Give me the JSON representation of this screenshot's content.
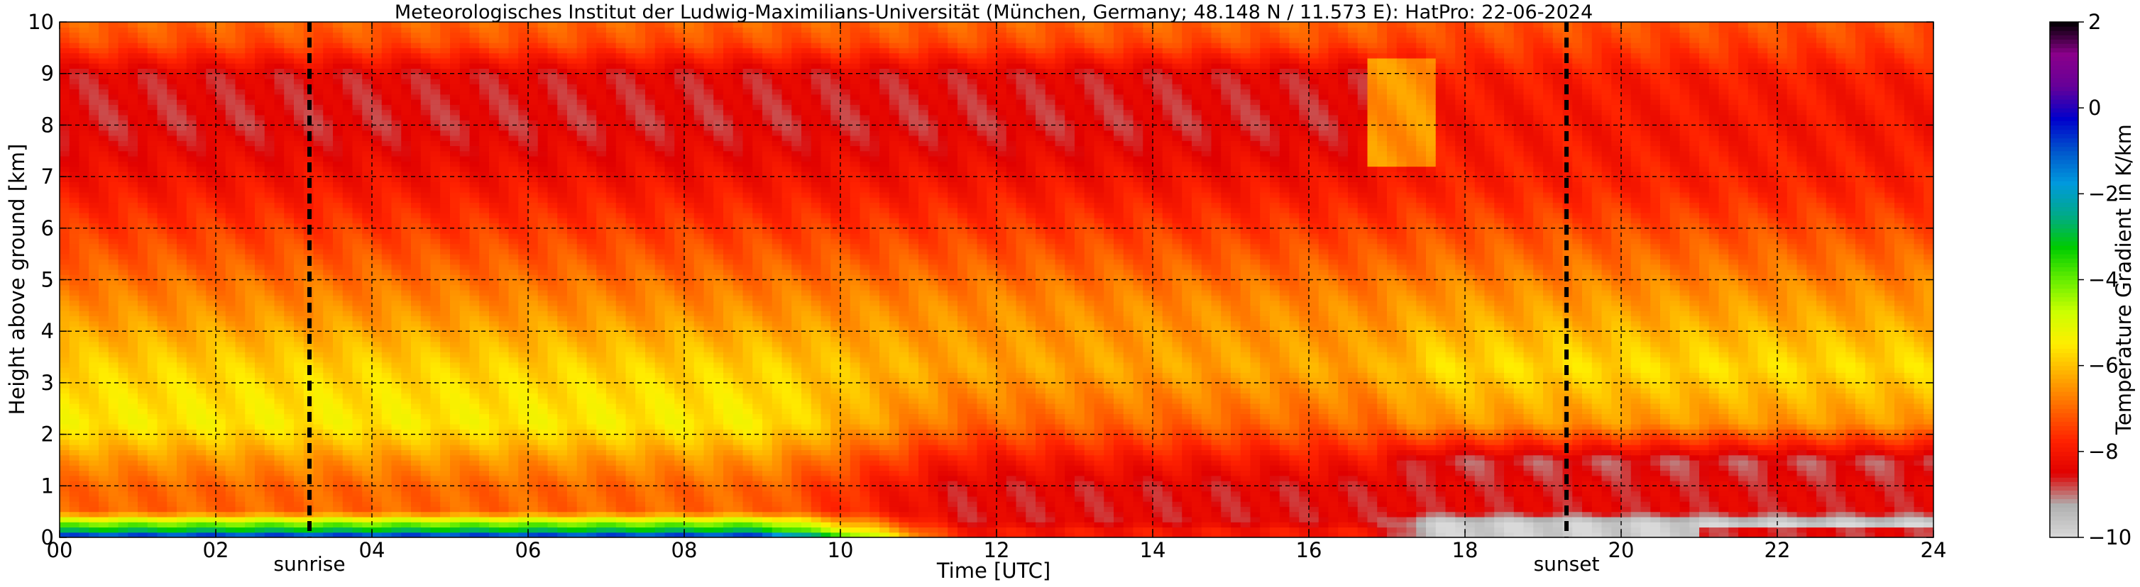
{
  "chart_data": {
    "type": "heatmap",
    "title": "Meteorologisches Institut der Ludwig-Maximilians-Universität (München, Germany; 48.148 N / 11.573 E):    HatPro: 22-06-2024",
    "xlabel": "Time [UTC]",
    "ylabel": "Height above ground [km]",
    "colorbar_label": "Temperature Gradient in K/km",
    "xlim": [
      0,
      24
    ],
    "ylim": [
      0,
      10
    ],
    "x_ticks": [
      0,
      2,
      4,
      6,
      8,
      10,
      12,
      14,
      16,
      18,
      20,
      22,
      24
    ],
    "x_tick_labels": [
      "00",
      "02",
      "04",
      "06",
      "08",
      "10",
      "12",
      "14",
      "16",
      "18",
      "20",
      "22",
      "24"
    ],
    "y_ticks": [
      0,
      1,
      2,
      3,
      4,
      5,
      6,
      7,
      8,
      9,
      10
    ],
    "y_tick_labels": [
      "0",
      "1",
      "2",
      "3",
      "4",
      "5",
      "6",
      "7",
      "8",
      "9",
      "10"
    ],
    "grid": true,
    "colorbar_range": [
      -10,
      2
    ],
    "colorbar_ticks": [
      -10,
      -8,
      -6,
      -4,
      -2,
      0,
      2
    ],
    "colorbar_tick_labels": [
      "−10",
      "−8",
      "−6",
      "−4",
      "−2",
      "0",
      "2"
    ],
    "colorbar_colors": [
      "#d9d9d9",
      "#b0b0b0",
      "#e00000",
      "#ff2200",
      "#ff6600",
      "#ffaa00",
      "#ffee00",
      "#ccff00",
      "#66ee00",
      "#00cc00",
      "#00aa88",
      "#0099dd",
      "#0055cc",
      "#0000cc",
      "#660099",
      "#8a008a",
      "#000000"
    ],
    "annotations": [
      {
        "label": "sunrise",
        "x": 3.2
      },
      {
        "label": "sunset",
        "x": 19.3
      }
    ],
    "gradient_profile": [
      {
        "h": 0.05,
        "early": -1,
        "midday": -8,
        "late": -9.8
      },
      {
        "h": 0.15,
        "early": -3,
        "midday": -8,
        "late": -9.8
      },
      {
        "h": 0.3,
        "early": -4.5,
        "midday": -8.5,
        "late": -9.8
      },
      {
        "h": 0.5,
        "early": -7,
        "midday": -8.5,
        "late": -8.5
      },
      {
        "h": 1.0,
        "early": -7,
        "midday": -8.5,
        "late": -8.5
      },
      {
        "h": 1.5,
        "early": -6.5,
        "midday": -8,
        "late": -8.8
      },
      {
        "h": 2.2,
        "early": -5.5,
        "midday": -7,
        "late": -6.5
      },
      {
        "h": 3.3,
        "early": -5.8,
        "midday": -6.3,
        "late": -5.7
      },
      {
        "h": 4.5,
        "early": -6.6,
        "midday": -6.6,
        "late": -6.4
      },
      {
        "h": 6.0,
        "early": -7.5,
        "midday": -7.5,
        "late": -7.3
      },
      {
        "h": 6.8,
        "early": -8,
        "midday": -8,
        "late": -7.8
      },
      {
        "h": 8.0,
        "early": -8.6,
        "midday": -8.6,
        "late": -8.0
      },
      {
        "h": 9.0,
        "early": -8.5,
        "midday": -8.5,
        "late": -7.9
      },
      {
        "h": 9.6,
        "early": -7.3,
        "midday": -7.3,
        "late": -7.4
      },
      {
        "h": 10.0,
        "early": -7,
        "midday": -7,
        "late": -7.2
      }
    ]
  }
}
